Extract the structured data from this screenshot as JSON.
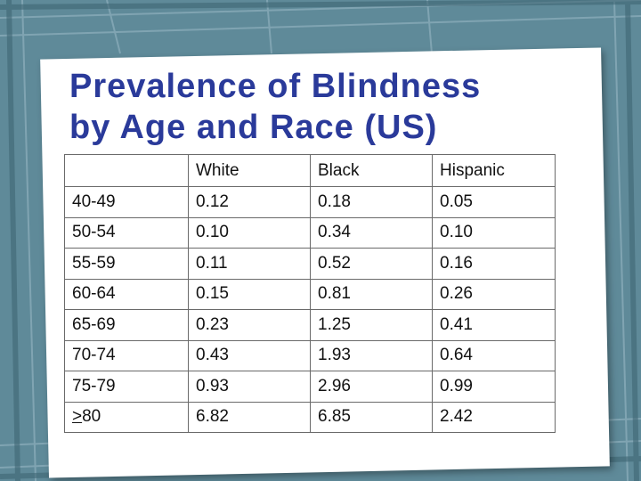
{
  "slide": {
    "title_line1": "Prevalence of Blindness",
    "title_line2": "by Age and Race (US)"
  },
  "table": {
    "headers": [
      "",
      "White",
      "Black",
      "Hispanic"
    ],
    "rows": [
      {
        "age": "40-49",
        "white": "0.12",
        "black": "0.18",
        "hispanic": "0.05"
      },
      {
        "age": "50-54",
        "white": "0.10",
        "black": "0.34",
        "hispanic": "0.10"
      },
      {
        "age": "55-59",
        "white": "0.11",
        "black": "0.52",
        "hispanic": "0.16"
      },
      {
        "age": "60-64",
        "white": "0.15",
        "black": "0.81",
        "hispanic": "0.26"
      },
      {
        "age": "65-69",
        "white": "0.23",
        "black": "1.25",
        "hispanic": "0.41"
      },
      {
        "age": "70-74",
        "white": "0.43",
        "black": "1.93",
        "hispanic": "0.64"
      },
      {
        "age": "75-79",
        "white": "0.93",
        "black": "2.96",
        "hispanic": "0.99"
      },
      {
        "age_symbol": ">",
        "age_value": "80",
        "white": "6.82",
        "black": "6.85",
        "hispanic": "2.42"
      }
    ]
  },
  "colors": {
    "background": "#5f8a99",
    "title": "#2a3a9a"
  }
}
